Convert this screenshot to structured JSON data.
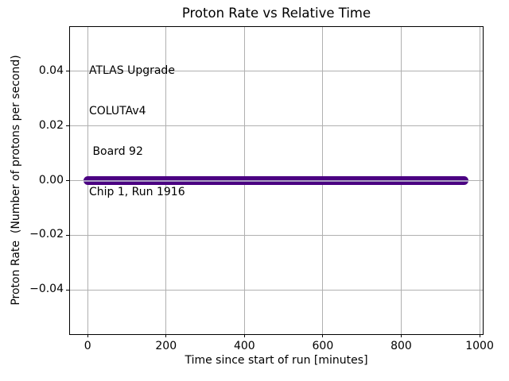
{
  "figure": {
    "background": "#ffffff"
  },
  "annotation": {
    "lines": [
      "ATLAS Upgrade",
      "COLUTAv4",
      " Board 92",
      "Chip 1, Run 1916"
    ]
  },
  "chart_data": {
    "type": "line",
    "title": "Proton Rate vs Relative Time",
    "xlabel": "Time since start of run [minutes]",
    "ylabel": "Proton Rate  (Number of protons per second)",
    "xlim": [
      -45,
      1008
    ],
    "ylim": [
      -0.0561,
      0.0561
    ],
    "grid": true,
    "grid_color": "#b0b0b0",
    "x_ticks": [
      {
        "v": 0,
        "label": "0"
      },
      {
        "v": 200,
        "label": "200"
      },
      {
        "v": 400,
        "label": "400"
      },
      {
        "v": 600,
        "label": "600"
      },
      {
        "v": 800,
        "label": "800"
      },
      {
        "v": 1000,
        "label": "1000"
      }
    ],
    "y_ticks": [
      {
        "v": 0.04,
        "label": "0.04"
      },
      {
        "v": 0.02,
        "label": "0.02"
      },
      {
        "v": 0.0,
        "label": "0.00"
      },
      {
        "v": -0.02,
        "label": "−0.02"
      },
      {
        "v": -0.04,
        "label": "−0.04"
      }
    ],
    "series": [
      {
        "name": "proton-rate",
        "color": "#4B0082",
        "marker": "o",
        "style": "dense-markers",
        "x_start": 0,
        "x_end": 960,
        "y": 0,
        "description": "constant proton rate of 0 protons per second from 0 to ~960 minutes"
      }
    ]
  }
}
